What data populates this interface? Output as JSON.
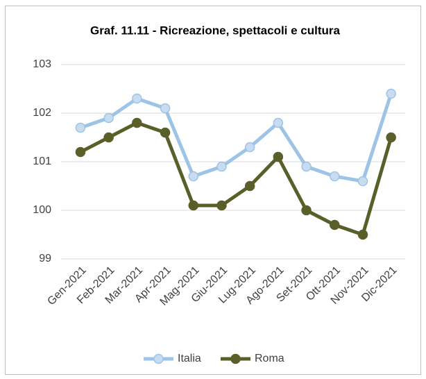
{
  "chart_data": {
    "type": "line",
    "title": "Graf. 11.11 - Ricreazione, spettacoli e cultura",
    "categories": [
      "Gen-2021",
      "Feb-2021",
      "Mar-2021",
      "Apr-2021",
      "Mag-2021",
      "Giu-2021",
      "Lug-2021",
      "Ago-2021",
      "Set-2021",
      "Ott-2021",
      "Nov-2021",
      "Dic-2021"
    ],
    "series": [
      {
        "name": "Italia",
        "color": "#9dc3e6",
        "values": [
          101.7,
          101.9,
          102.3,
          102.1,
          100.7,
          100.9,
          101.3,
          101.8,
          100.9,
          100.7,
          100.6,
          102.4
        ]
      },
      {
        "name": "Roma",
        "color": "#5a5f29",
        "values": [
          101.2,
          101.5,
          101.8,
          101.6,
          100.1,
          100.1,
          100.5,
          101.1,
          100.0,
          99.7,
          99.5,
          101.5
        ]
      }
    ],
    "ylim": [
      99,
      103
    ],
    "yticks": [
      99,
      100,
      101,
      102,
      103
    ],
    "grid": true,
    "legend": "bottom"
  }
}
